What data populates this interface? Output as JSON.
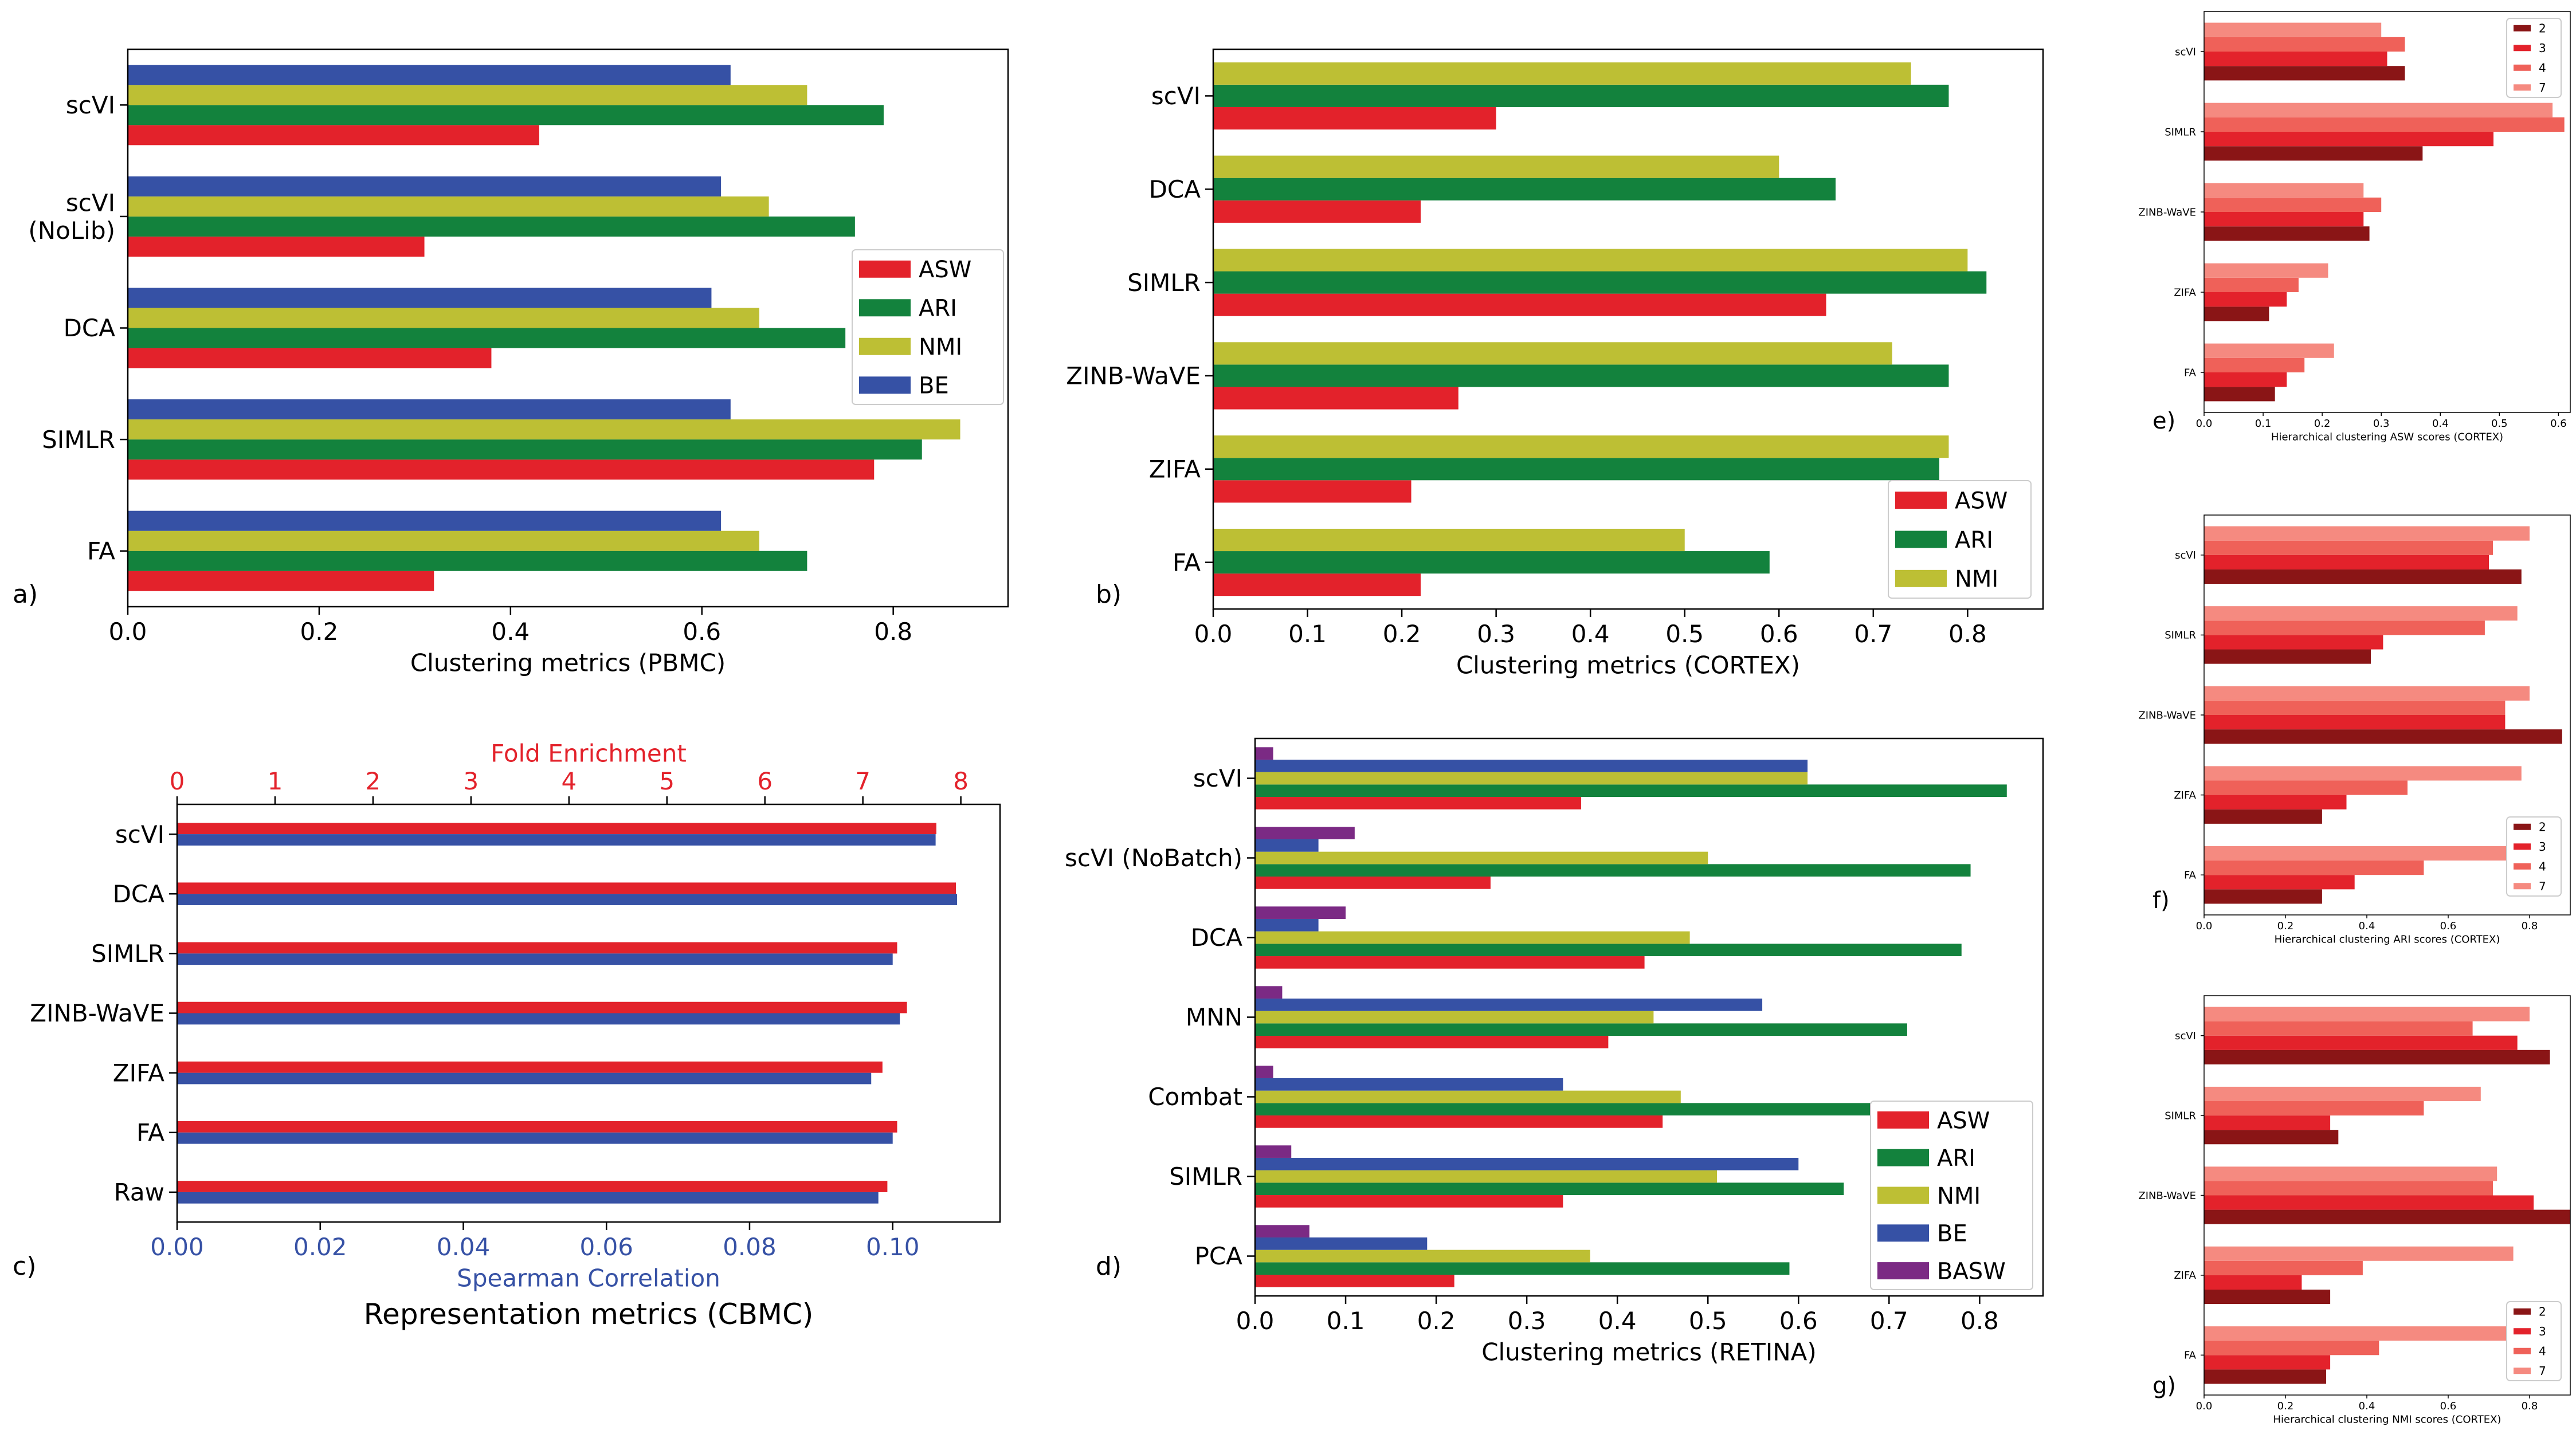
{
  "colors": {
    "ASW": "#e3222b",
    "ARI": "#13823d",
    "NMI": "#bdbf34",
    "BE": "#3651a5",
    "BASW": "#7b2a84",
    "spearman": "#3651a5",
    "fold": "#e3222b",
    "k2": "#8a1516",
    "k3": "#e3222b",
    "k4": "#ef6159",
    "k7": "#f58a80"
  },
  "chart_data": [
    {
      "id": "a",
      "panel_label": "a)",
      "type": "bar",
      "orientation": "horizontal",
      "xlabel": "Clustering metrics (PBMC)",
      "xlim": [
        0,
        0.92
      ],
      "xticks": [
        0.0,
        0.2,
        0.4,
        0.6,
        0.8
      ],
      "xtick_labels": [
        "0.0",
        "0.2",
        "0.4",
        "0.6",
        "0.8"
      ],
      "categories": [
        "scVI",
        "scVI\n(NoLib)",
        "DCA",
        "SIMLR",
        "FA"
      ],
      "series": [
        {
          "name": "ASW",
          "values": [
            0.43,
            0.31,
            0.38,
            0.78,
            0.32
          ]
        },
        {
          "name": "ARI",
          "values": [
            0.79,
            0.76,
            0.75,
            0.83,
            0.71
          ]
        },
        {
          "name": "NMI",
          "values": [
            0.71,
            0.67,
            0.66,
            0.87,
            0.66
          ]
        },
        {
          "name": "BE",
          "values": [
            0.63,
            0.62,
            0.61,
            0.63,
            0.62
          ]
        }
      ],
      "legend": [
        "ASW",
        "ARI",
        "NMI",
        "BE"
      ],
      "legend_position": "center-right",
      "grid": false
    },
    {
      "id": "b",
      "panel_label": "b)",
      "type": "bar",
      "orientation": "horizontal",
      "xlabel": "Clustering metrics (CORTEX)",
      "xlim": [
        0,
        0.88
      ],
      "xticks": [
        0.0,
        0.1,
        0.2,
        0.3,
        0.4,
        0.5,
        0.6,
        0.7,
        0.8
      ],
      "xtick_labels": [
        "0.0",
        "0.1",
        "0.2",
        "0.3",
        "0.4",
        "0.5",
        "0.6",
        "0.7",
        "0.8"
      ],
      "categories": [
        "scVI",
        "DCA",
        "SIMLR",
        "ZINB-WaVE",
        "ZIFA",
        "FA"
      ],
      "series": [
        {
          "name": "ASW",
          "values": [
            0.3,
            0.22,
            0.65,
            0.26,
            0.21,
            0.22
          ]
        },
        {
          "name": "ARI",
          "values": [
            0.78,
            0.66,
            0.82,
            0.78,
            0.77,
            0.59
          ]
        },
        {
          "name": "NMI",
          "values": [
            0.74,
            0.6,
            0.8,
            0.72,
            0.78,
            0.5
          ]
        }
      ],
      "legend": [
        "ASW",
        "ARI",
        "NMI"
      ],
      "legend_position": "lower-right",
      "grid": false
    },
    {
      "id": "c",
      "panel_label": "c)",
      "type": "bar",
      "orientation": "horizontal",
      "title": "Representation metrics (CBMC)",
      "xlabel": "Spearman Correlation",
      "xlim": [
        0,
        0.115
      ],
      "xticks": [
        0.0,
        0.02,
        0.04,
        0.06,
        0.08,
        0.1
      ],
      "xtick_labels": [
        "0.00",
        "0.02",
        "0.04",
        "0.06",
        "0.08",
        "0.10"
      ],
      "x2label": "Fold Enrichment",
      "x2lim": [
        0,
        8.4
      ],
      "x2ticks": [
        0,
        1,
        2,
        3,
        4,
        5,
        6,
        7,
        8
      ],
      "x2tick_labels": [
        "0",
        "1",
        "2",
        "3",
        "4",
        "5",
        "6",
        "7",
        "8"
      ],
      "categories": [
        "scVI",
        "DCA",
        "SIMLR",
        "ZINB-WaVE",
        "ZIFA",
        "FA",
        "Raw"
      ],
      "series": [
        {
          "name": "Fold Enrichment",
          "axis": "top",
          "values": [
            7.75,
            7.95,
            7.35,
            7.45,
            7.2,
            7.35,
            7.25
          ]
        },
        {
          "name": "Spearman Correlation",
          "axis": "bottom",
          "values": [
            0.106,
            0.109,
            0.1,
            0.101,
            0.097,
            0.1,
            0.098
          ]
        }
      ],
      "grid": false
    },
    {
      "id": "d",
      "panel_label": "d)",
      "type": "bar",
      "orientation": "horizontal",
      "xlabel": "Clustering metrics (RETINA)",
      "xlim": [
        0,
        0.87
      ],
      "xticks": [
        0.0,
        0.1,
        0.2,
        0.3,
        0.4,
        0.5,
        0.6,
        0.7,
        0.8
      ],
      "xtick_labels": [
        "0.0",
        "0.1",
        "0.2",
        "0.3",
        "0.4",
        "0.5",
        "0.6",
        "0.7",
        "0.8"
      ],
      "categories": [
        "scVI",
        "scVI (NoBatch)",
        "DCA",
        "MNN",
        "Combat",
        "SIMLR",
        "PCA"
      ],
      "series": [
        {
          "name": "ASW",
          "values": [
            0.36,
            0.26,
            0.43,
            0.39,
            0.45,
            0.34,
            0.22
          ]
        },
        {
          "name": "ARI",
          "values": [
            0.83,
            0.79,
            0.78,
            0.72,
            0.79,
            0.65,
            0.59
          ]
        },
        {
          "name": "NMI",
          "values": [
            0.61,
            0.5,
            0.48,
            0.44,
            0.47,
            0.51,
            0.37
          ]
        },
        {
          "name": "BE",
          "values": [
            0.61,
            0.07,
            0.07,
            0.56,
            0.34,
            0.6,
            0.19
          ]
        },
        {
          "name": "BASW",
          "values": [
            0.02,
            0.11,
            0.1,
            0.03,
            0.02,
            0.04,
            0.06
          ]
        }
      ],
      "legend": [
        "ASW",
        "ARI",
        "NMI",
        "BE",
        "BASW"
      ],
      "legend_position": "lower-right",
      "grid": false
    },
    {
      "id": "e",
      "panel_label": "e)",
      "type": "bar",
      "orientation": "horizontal",
      "xlabel": "Hierarchical clustering ASW scores (CORTEX)",
      "xlim": [
        0,
        0.62
      ],
      "xticks": [
        0.0,
        0.1,
        0.2,
        0.3,
        0.4,
        0.5,
        0.6
      ],
      "xtick_labels": [
        "0.0",
        "0.1",
        "0.2",
        "0.3",
        "0.4",
        "0.5",
        "0.6"
      ],
      "categories": [
        "scVI",
        "SIMLR",
        "ZINB-WaVE",
        "ZIFA",
        "FA"
      ],
      "series": [
        {
          "name": "2",
          "values": [
            0.34,
            0.37,
            0.28,
            0.11,
            0.12
          ]
        },
        {
          "name": "3",
          "values": [
            0.31,
            0.49,
            0.27,
            0.14,
            0.14
          ]
        },
        {
          "name": "4",
          "values": [
            0.34,
            0.61,
            0.3,
            0.16,
            0.17
          ]
        },
        {
          "name": "7",
          "values": [
            0.3,
            0.59,
            0.27,
            0.21,
            0.22
          ]
        }
      ],
      "legend": [
        "2",
        "3",
        "4",
        "7"
      ],
      "legend_position": "upper-right",
      "grid": false
    },
    {
      "id": "f",
      "panel_label": "f)",
      "type": "bar",
      "orientation": "horizontal",
      "xlabel": "Hierarchical clustering ARI scores (CORTEX)",
      "xlim": [
        0,
        0.9
      ],
      "xticks": [
        0.0,
        0.2,
        0.4,
        0.6,
        0.8
      ],
      "xtick_labels": [
        "0.0",
        "0.2",
        "0.4",
        "0.6",
        "0.8"
      ],
      "categories": [
        "scVI",
        "SIMLR",
        "ZINB-WaVE",
        "ZIFA",
        "FA"
      ],
      "series": [
        {
          "name": "2",
          "values": [
            0.78,
            0.41,
            0.88,
            0.29,
            0.29
          ]
        },
        {
          "name": "3",
          "values": [
            0.7,
            0.44,
            0.74,
            0.35,
            0.37
          ]
        },
        {
          "name": "4",
          "values": [
            0.71,
            0.69,
            0.74,
            0.5,
            0.54
          ]
        },
        {
          "name": "7",
          "values": [
            0.8,
            0.77,
            0.8,
            0.78,
            0.78
          ]
        }
      ],
      "legend": [
        "2",
        "3",
        "4",
        "7"
      ],
      "legend_position": "lower-right",
      "grid": false
    },
    {
      "id": "g",
      "panel_label": "g)",
      "type": "bar",
      "orientation": "horizontal",
      "xlabel": "Hierarchical clustering NMI scores (CORTEX)",
      "xlim": [
        0,
        0.9
      ],
      "xticks": [
        0.0,
        0.2,
        0.4,
        0.6,
        0.8
      ],
      "xtick_labels": [
        "0.0",
        "0.2",
        "0.4",
        "0.6",
        "0.8"
      ],
      "categories": [
        "scVI",
        "SIMLR",
        "ZINB-WaVE",
        "ZIFA",
        "FA"
      ],
      "series": [
        {
          "name": "2",
          "values": [
            0.85,
            0.33,
            0.9,
            0.31,
            0.3
          ]
        },
        {
          "name": "3",
          "values": [
            0.77,
            0.31,
            0.81,
            0.24,
            0.31
          ]
        },
        {
          "name": "4",
          "values": [
            0.66,
            0.54,
            0.71,
            0.39,
            0.43
          ]
        },
        {
          "name": "7",
          "values": [
            0.8,
            0.68,
            0.72,
            0.76,
            0.8
          ]
        }
      ],
      "legend": [
        "2",
        "3",
        "4",
        "7"
      ],
      "legend_position": "lower-right",
      "grid": false
    }
  ]
}
